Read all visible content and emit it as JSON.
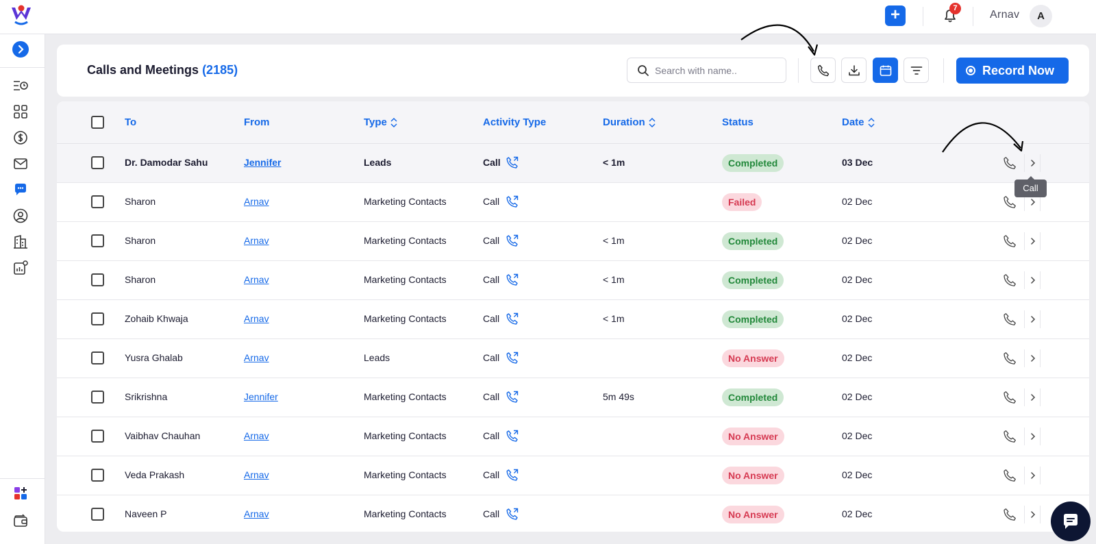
{
  "colors": {
    "accent": "#1569e8",
    "completed_bg": "#cfe8d3",
    "completed_fg": "#22883a",
    "fail_bg": "#fbd8de",
    "fail_fg": "#d63a52"
  },
  "topbar": {
    "notification_count": "7",
    "user_name": "Arnav",
    "avatar_initial": "A"
  },
  "header": {
    "title": "Calls and Meetings",
    "count": "(2185)",
    "search_placeholder": "Search with name..",
    "record_label": "Record Now"
  },
  "table": {
    "columns": {
      "to": "To",
      "from": "From",
      "type": "Type",
      "activity_type": "Activity Type",
      "duration": "Duration",
      "status": "Status",
      "date": "Date"
    },
    "rows": [
      {
        "to": "Dr. Damodar Sahu",
        "from": "Jennifer",
        "type": "Leads",
        "activity": "Call",
        "duration": "< 1m",
        "status": "Completed",
        "date": "03 Dec"
      },
      {
        "to": "Sharon",
        "from": "Arnav",
        "type": "Marketing Contacts",
        "activity": "Call",
        "duration": "",
        "status": "Failed",
        "date": "02 Dec"
      },
      {
        "to": "Sharon",
        "from": "Arnav",
        "type": "Marketing Contacts",
        "activity": "Call",
        "duration": "< 1m",
        "status": "Completed",
        "date": "02 Dec"
      },
      {
        "to": "Sharon",
        "from": "Arnav",
        "type": "Marketing Contacts",
        "activity": "Call",
        "duration": "< 1m",
        "status": "Completed",
        "date": "02 Dec"
      },
      {
        "to": "Zohaib Khwaja",
        "from": "Arnav",
        "type": "Marketing Contacts",
        "activity": "Call",
        "duration": "< 1m",
        "status": "Completed",
        "date": "02 Dec"
      },
      {
        "to": "Yusra Ghalab",
        "from": "Arnav",
        "type": "Leads",
        "activity": "Call",
        "duration": "",
        "status": "No Answer",
        "date": "02 Dec"
      },
      {
        "to": "Srikrishna",
        "from": "Jennifer",
        "type": "Marketing Contacts",
        "activity": "Call",
        "duration": "5m 49s",
        "status": "Completed",
        "date": "02 Dec"
      },
      {
        "to": "Vaibhav Chauhan",
        "from": "Arnav",
        "type": "Marketing Contacts",
        "activity": "Call",
        "duration": "",
        "status": "No Answer",
        "date": "02 Dec"
      },
      {
        "to": "Veda Prakash",
        "from": "Arnav",
        "type": "Marketing Contacts",
        "activity": "Call",
        "duration": "",
        "status": "No Answer",
        "date": "02 Dec"
      },
      {
        "to": "Naveen P",
        "from": "Arnav",
        "type": "Marketing Contacts",
        "activity": "Call",
        "duration": "",
        "status": "No Answer",
        "date": "02 Dec"
      }
    ]
  },
  "tooltip": {
    "text": "Call"
  },
  "icons": {
    "sidebar": [
      "activity-list-icon",
      "dashboard-grid-icon",
      "dollar-icon",
      "mail-icon",
      "chat-icon",
      "user-icon",
      "building-icon",
      "analytics-settings-icon",
      "apps-add-icon",
      "wallet-icon"
    ],
    "header": [
      "search-icon",
      "phone-icon",
      "download-icon",
      "calendar-icon",
      "filter-icon",
      "record-icon"
    ]
  }
}
